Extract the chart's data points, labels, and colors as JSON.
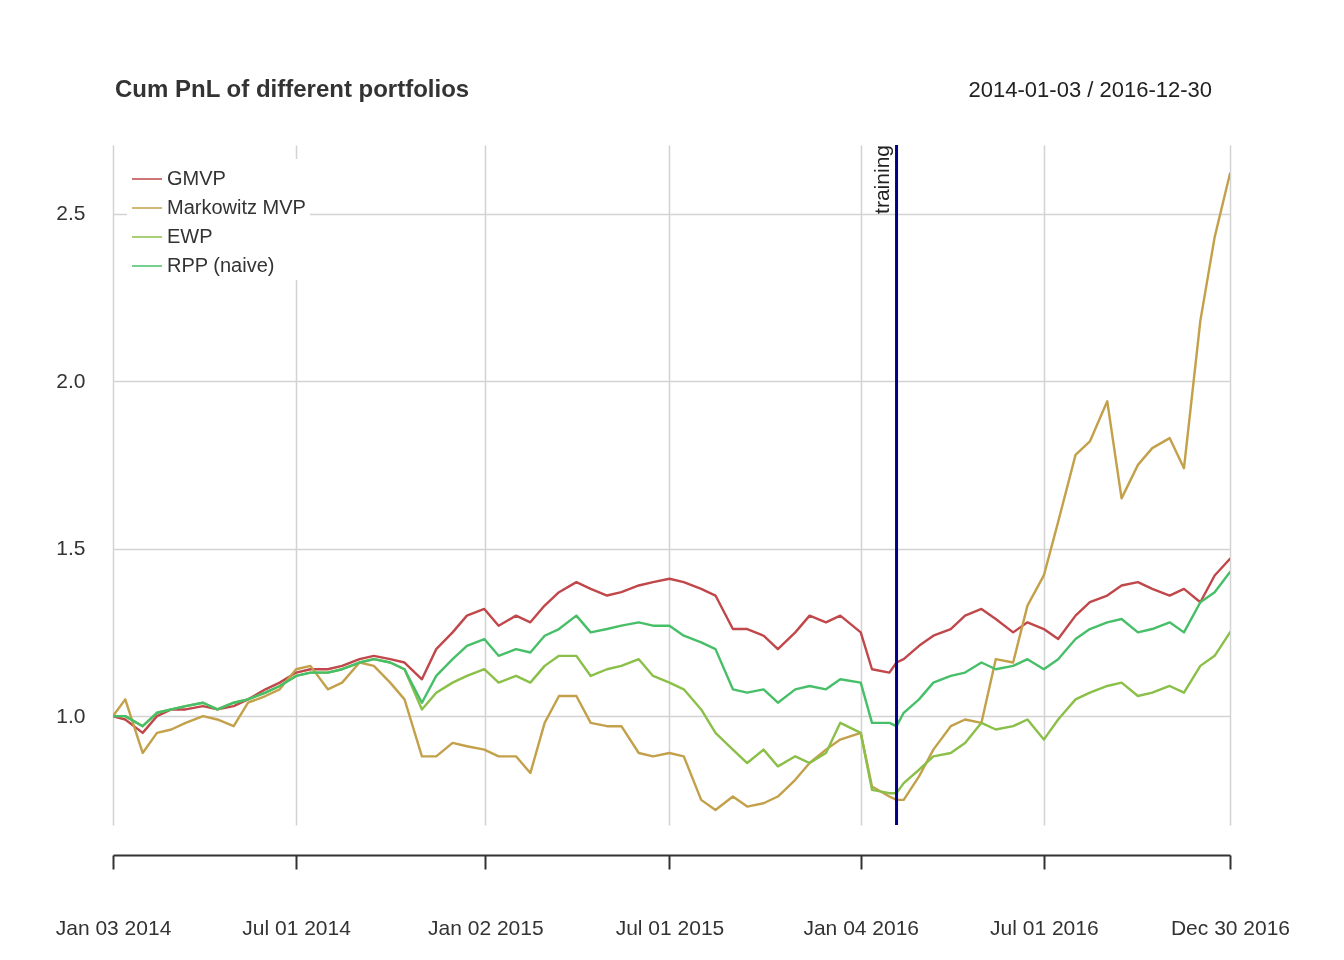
{
  "chart_data": {
    "type": "line",
    "title": "Cum PnL of different portfolios",
    "subtitle": "2014-01-03 / 2016-12-30",
    "x": [
      "2014-01-03",
      "2014-01-15",
      "2014-02-01",
      "2014-02-15",
      "2014-03-01",
      "2014-03-15",
      "2014-04-01",
      "2014-04-15",
      "2014-05-01",
      "2014-05-15",
      "2014-06-01",
      "2014-06-15",
      "2014-07-01",
      "2014-07-15",
      "2014-08-01",
      "2014-08-15",
      "2014-09-01",
      "2014-09-15",
      "2014-10-01",
      "2014-10-15",
      "2014-11-01",
      "2014-11-15",
      "2014-12-01",
      "2014-12-15",
      "2015-01-01",
      "2015-01-15",
      "2015-02-01",
      "2015-02-15",
      "2015-03-01",
      "2015-03-15",
      "2015-04-01",
      "2015-04-15",
      "2015-05-01",
      "2015-05-15",
      "2015-06-01",
      "2015-06-15",
      "2015-07-01",
      "2015-07-15",
      "2015-08-01",
      "2015-08-15",
      "2015-09-01",
      "2015-09-15",
      "2015-10-01",
      "2015-10-15",
      "2015-11-01",
      "2015-11-15",
      "2015-12-01",
      "2015-12-15",
      "2016-01-04",
      "2016-01-15",
      "2016-02-01",
      "2016-02-08",
      "2016-02-15",
      "2016-03-01",
      "2016-03-15",
      "2016-04-01",
      "2016-04-15",
      "2016-05-01",
      "2016-05-15",
      "2016-06-01",
      "2016-06-15",
      "2016-07-01",
      "2016-07-15",
      "2016-08-01",
      "2016-08-15",
      "2016-09-01",
      "2016-09-15",
      "2016-10-01",
      "2016-10-15",
      "2016-11-01",
      "2016-11-15",
      "2016-12-01",
      "2016-12-15",
      "2016-12-30"
    ],
    "series": [
      {
        "name": "GMVP",
        "color": "#c0474a",
        "values": [
          1.0,
          0.99,
          0.95,
          1.0,
          1.02,
          1.02,
          1.03,
          1.02,
          1.03,
          1.05,
          1.08,
          1.1,
          1.13,
          1.14,
          1.14,
          1.15,
          1.17,
          1.18,
          1.17,
          1.16,
          1.11,
          1.2,
          1.25,
          1.3,
          1.32,
          1.27,
          1.3,
          1.28,
          1.33,
          1.37,
          1.4,
          1.38,
          1.36,
          1.37,
          1.39,
          1.4,
          1.41,
          1.4,
          1.38,
          1.36,
          1.26,
          1.26,
          1.24,
          1.2,
          1.25,
          1.3,
          1.28,
          1.3,
          1.25,
          1.14,
          1.13,
          1.16,
          1.17,
          1.21,
          1.24,
          1.26,
          1.3,
          1.32,
          1.29,
          1.25,
          1.28,
          1.26,
          1.23,
          1.3,
          1.34,
          1.36,
          1.39,
          1.4,
          1.38,
          1.36,
          1.38,
          1.34,
          1.42,
          1.47
        ]
      },
      {
        "name": "Markowitz MVP",
        "color": "#c3a04a",
        "values": [
          1.0,
          1.05,
          0.89,
          0.95,
          0.96,
          0.98,
          1.0,
          0.99,
          0.97,
          1.04,
          1.06,
          1.08,
          1.14,
          1.15,
          1.08,
          1.1,
          1.16,
          1.15,
          1.1,
          1.05,
          0.88,
          0.88,
          0.92,
          0.91,
          0.9,
          0.88,
          0.88,
          0.83,
          0.98,
          1.06,
          1.06,
          0.98,
          0.97,
          0.97,
          0.89,
          0.88,
          0.89,
          0.88,
          0.75,
          0.72,
          0.76,
          0.73,
          0.74,
          0.76,
          0.81,
          0.86,
          0.9,
          0.93,
          0.95,
          0.79,
          0.76,
          0.75,
          0.75,
          0.82,
          0.9,
          0.97,
          0.99,
          0.98,
          1.17,
          1.16,
          1.33,
          1.42,
          1.58,
          1.78,
          1.82,
          1.94,
          1.65,
          1.75,
          1.8,
          1.83,
          1.74,
          2.18,
          2.43,
          2.62
        ]
      },
      {
        "name": "EWP",
        "color": "#8abf48",
        "values": [
          1.0,
          1.0,
          0.97,
          1.01,
          1.02,
          1.03,
          1.04,
          1.02,
          1.04,
          1.05,
          1.07,
          1.09,
          1.12,
          1.13,
          1.13,
          1.14,
          1.16,
          1.17,
          1.16,
          1.14,
          1.02,
          1.07,
          1.1,
          1.12,
          1.14,
          1.1,
          1.12,
          1.1,
          1.15,
          1.18,
          1.18,
          1.12,
          1.14,
          1.15,
          1.17,
          1.12,
          1.1,
          1.08,
          1.02,
          0.95,
          0.9,
          0.86,
          0.9,
          0.85,
          0.88,
          0.86,
          0.89,
          0.98,
          0.95,
          0.78,
          0.77,
          0.77,
          0.8,
          0.84,
          0.88,
          0.89,
          0.92,
          0.98,
          0.96,
          0.97,
          0.99,
          0.93,
          0.99,
          1.05,
          1.07,
          1.09,
          1.1,
          1.06,
          1.07,
          1.09,
          1.07,
          1.15,
          1.18,
          1.25
        ]
      },
      {
        "name": "RPP (naive)",
        "color": "#47bf68",
        "values": [
          1.0,
          1.0,
          0.97,
          1.01,
          1.02,
          1.03,
          1.04,
          1.02,
          1.04,
          1.05,
          1.07,
          1.09,
          1.12,
          1.13,
          1.13,
          1.14,
          1.16,
          1.17,
          1.16,
          1.14,
          1.04,
          1.12,
          1.17,
          1.21,
          1.23,
          1.18,
          1.2,
          1.19,
          1.24,
          1.26,
          1.3,
          1.25,
          1.26,
          1.27,
          1.28,
          1.27,
          1.27,
          1.24,
          1.22,
          1.2,
          1.08,
          1.07,
          1.08,
          1.04,
          1.08,
          1.09,
          1.08,
          1.11,
          1.1,
          0.98,
          0.98,
          0.97,
          1.01,
          1.05,
          1.1,
          1.12,
          1.13,
          1.16,
          1.14,
          1.15,
          1.17,
          1.14,
          1.17,
          1.23,
          1.26,
          1.28,
          1.29,
          1.25,
          1.26,
          1.28,
          1.25,
          1.34,
          1.37,
          1.43
        ]
      }
    ],
    "xlim": [
      "2014-01-03",
      "2016-12-30"
    ],
    "ylim": [
      0.675,
      2.705
    ],
    "xticks": [
      {
        "value": "2014-01-03",
        "label": "Jan 03 2014"
      },
      {
        "value": "2014-07-01",
        "label": "Jul 01 2014"
      },
      {
        "value": "2015-01-02",
        "label": "Jan 02 2015"
      },
      {
        "value": "2015-07-01",
        "label": "Jul 01 2015"
      },
      {
        "value": "2016-01-04",
        "label": "Jan 04 2016"
      },
      {
        "value": "2016-07-01",
        "label": "Jul 01 2016"
      },
      {
        "value": "2016-12-30",
        "label": "Dec 30 2016"
      }
    ],
    "yticks": [
      {
        "value": 1,
        "label": "1.0"
      },
      {
        "value": 1.5,
        "label": "1.5"
      },
      {
        "value": 2,
        "label": "2.0"
      },
      {
        "value": 2.5,
        "label": "2.5"
      }
    ],
    "grid": true,
    "legend": "top left",
    "line_style": "solid",
    "ref_lines": [
      {
        "axis": "x",
        "value": "2016-02-08",
        "label": "training",
        "color": "#00008b"
      }
    ]
  }
}
